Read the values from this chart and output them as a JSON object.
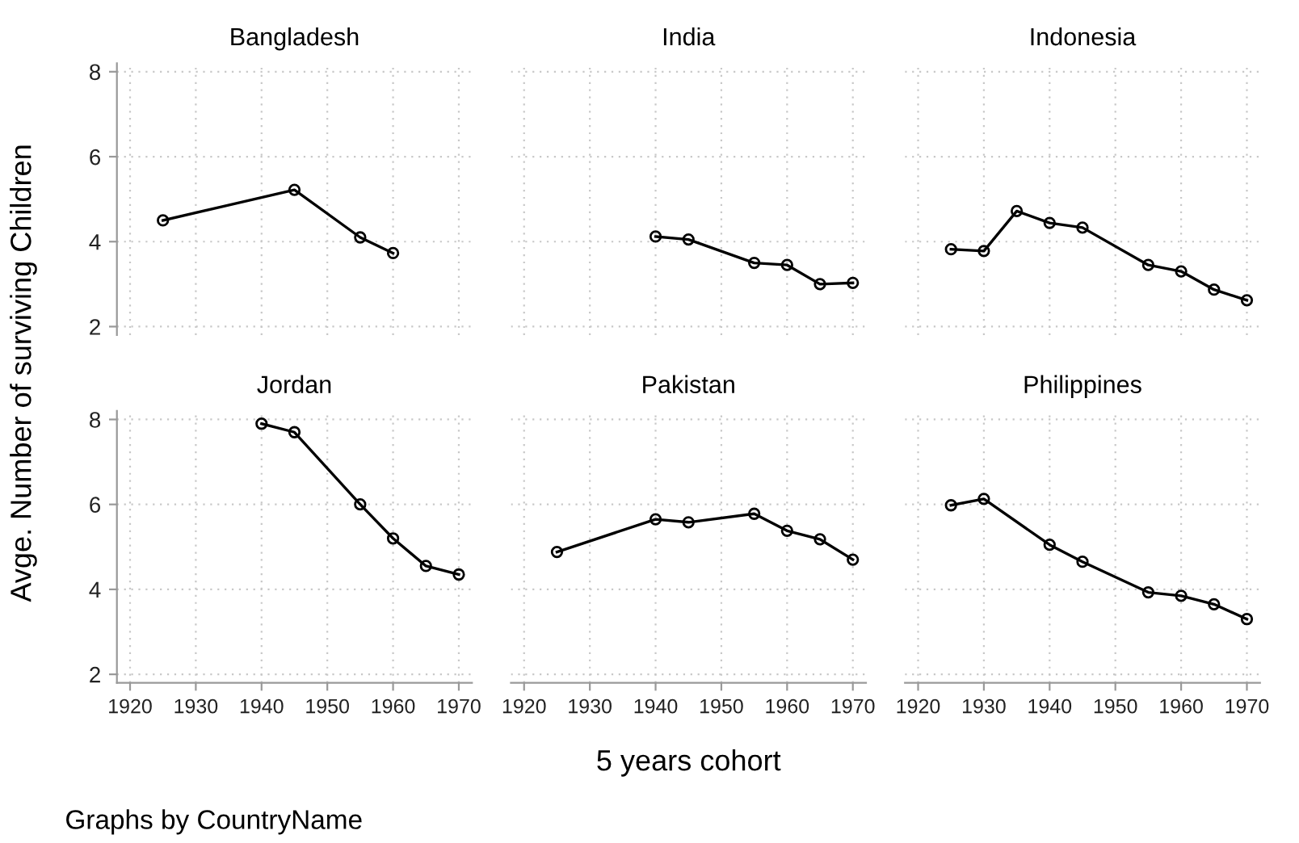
{
  "chart_data": [
    {
      "type": "line",
      "title": "Bangladesh",
      "ylabel": "Avge. Number of surviving Children",
      "x": [
        1925,
        1945,
        1955,
        1960
      ],
      "series": [
        {
          "color": "#000000",
          "values": [
            4.5,
            5.22,
            4.1,
            3.73
          ]
        }
      ],
      "xlim": [
        1918,
        1972
      ],
      "xticks": [
        1920,
        1930,
        1940,
        1950,
        1960,
        1970
      ],
      "ylim": [
        1.8,
        8.2
      ],
      "yticks": [
        2,
        4,
        6,
        8
      ],
      "grid": true,
      "marker": "circle",
      "line_style": "solid",
      "tick_labels": "y"
    },
    {
      "type": "line",
      "title": "India",
      "x": [
        1940,
        1945,
        1955,
        1960,
        1965,
        1970
      ],
      "series": [
        {
          "color": "#000000",
          "values": [
            4.12,
            4.05,
            3.5,
            3.45,
            3.0,
            3.03
          ]
        }
      ],
      "xlim": [
        1918,
        1972
      ],
      "xticks": [
        1920,
        1930,
        1940,
        1950,
        1960,
        1970
      ],
      "ylim": [
        1.8,
        8.2
      ],
      "yticks": [
        2,
        4,
        6,
        8
      ],
      "grid": true,
      "marker": "circle",
      "line_style": "solid",
      "tick_labels": false
    },
    {
      "type": "line",
      "title": "Indonesia",
      "x": [
        1925,
        1930,
        1935,
        1940,
        1945,
        1955,
        1960,
        1965,
        1970
      ],
      "series": [
        {
          "color": "#000000",
          "values": [
            3.82,
            3.78,
            4.72,
            4.44,
            4.33,
            3.45,
            3.3,
            2.87,
            2.62
          ]
        }
      ],
      "xlim": [
        1918,
        1972
      ],
      "xticks": [
        1920,
        1930,
        1940,
        1950,
        1960,
        1970
      ],
      "ylim": [
        1.8,
        8.2
      ],
      "yticks": [
        2,
        4,
        6,
        8
      ],
      "grid": true,
      "marker": "circle",
      "line_style": "solid",
      "tick_labels": false
    },
    {
      "type": "line",
      "title": "Jordan",
      "annotations": [
        "Graphs by CountryName"
      ],
      "x": [
        1940,
        1945,
        1955,
        1960,
        1965,
        1970
      ],
      "series": [
        {
          "color": "#000000",
          "values": [
            7.9,
            7.7,
            6.0,
            5.2,
            4.55,
            4.35
          ]
        }
      ],
      "xlim": [
        1918,
        1972
      ],
      "xticks": [
        1920,
        1930,
        1940,
        1950,
        1960,
        1970
      ],
      "ylim": [
        1.8,
        8.2
      ],
      "yticks": [
        2,
        4,
        6,
        8
      ],
      "grid": true,
      "marker": "circle",
      "line_style": "solid"
    },
    {
      "type": "line",
      "title": "Pakistan",
      "xlabel": "5 years cohort",
      "x": [
        1925,
        1940,
        1945,
        1955,
        1960,
        1965,
        1970
      ],
      "series": [
        {
          "color": "#000000",
          "values": [
            4.88,
            5.65,
            5.58,
            5.78,
            5.38,
            5.18,
            4.7
          ]
        }
      ],
      "xlim": [
        1918,
        1972
      ],
      "xticks": [
        1920,
        1930,
        1940,
        1950,
        1960,
        1970
      ],
      "ylim": [
        1.8,
        8.2
      ],
      "yticks": [
        2,
        4,
        6,
        8
      ],
      "grid": true,
      "marker": "circle",
      "line_style": "solid",
      "tick_labels": "x"
    },
    {
      "type": "line",
      "title": "Philippines",
      "x": [
        1925,
        1930,
        1940,
        1945,
        1955,
        1960,
        1965,
        1970
      ],
      "series": [
        {
          "color": "#000000",
          "values": [
            5.98,
            6.13,
            5.05,
            4.65,
            3.93,
            3.85,
            3.65,
            3.3
          ]
        }
      ],
      "xlim": [
        1918,
        1972
      ],
      "xticks": [
        1920,
        1930,
        1940,
        1950,
        1960,
        1970
      ],
      "ylim": [
        1.8,
        8.2
      ],
      "yticks": [
        2,
        4,
        6,
        8
      ],
      "grid": true,
      "marker": "circle",
      "line_style": "solid",
      "tick_labels": "x"
    }
  ]
}
